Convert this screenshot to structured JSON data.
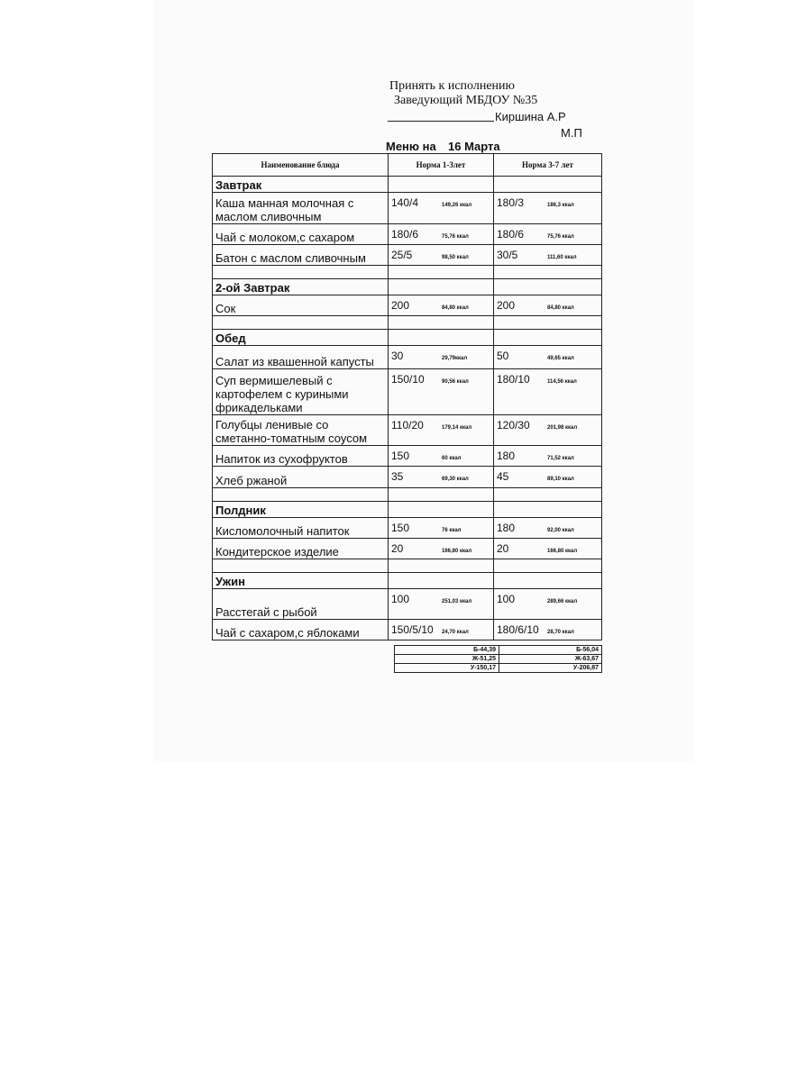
{
  "approval": {
    "line1": "Принять к исполнению",
    "line2": "Заведующий МБДОУ №35",
    "signer": "Киршина А.Р",
    "stamp": "М.П"
  },
  "title": {
    "label": "Меню на",
    "date": "16 Марта"
  },
  "table": {
    "header": [
      "Наименование блюда",
      "Норма 1-3лет",
      "Норма 3-7 лет"
    ],
    "sections": [
      {
        "title": "Завтрак",
        "dishes": [
          {
            "name": "Каша манная молочная с маслом сливочным",
            "norm_1_3": {
              "portion": "140/4",
              "kcal": "149,26 ккал"
            },
            "norm_3_7": {
              "portion": "180/3",
              "kcal": "186,3 ккал"
            }
          },
          {
            "name": "Чай с молоком,с сахаром",
            "norm_1_3": {
              "portion": "180/6",
              "kcal": "75,76 ккал"
            },
            "norm_3_7": {
              "portion": "180/6",
              "kcal": "75,76 ккал"
            }
          },
          {
            "name": "Батон с   маслом сливочным",
            "norm_1_3": {
              "portion": "25/5",
              "kcal": "98,50 ккал"
            },
            "norm_3_7": {
              "portion": "30/5",
              "kcal": "111,60 ккал"
            }
          }
        ]
      },
      {
        "title": "2-ой Завтрак",
        "dishes": [
          {
            "name": "Сок",
            "norm_1_3": {
              "portion": "200",
              "kcal": "84,80 ккал"
            },
            "norm_3_7": {
              "portion": "200",
              "kcal": "84,80 ккал"
            }
          }
        ]
      },
      {
        "title": "Обед",
        "dishes": [
          {
            "name": "Салат из квашенной капусты",
            "norm_1_3": {
              "portion": "30",
              "kcal": "29,79ккал"
            },
            "norm_3_7": {
              "portion": "50",
              "kcal": "49,65 ккал"
            }
          },
          {
            "name": "Суп вермишелевый с картофелем с куриными фрикадельками",
            "norm_1_3": {
              "portion": "150/10",
              "kcal": "90,56 ккал"
            },
            "norm_3_7": {
              "portion": "180/10",
              "kcal": "114,56 ккал"
            }
          },
          {
            "name": "Голубцы ленивые со сметанно-томатным соусом",
            "norm_1_3": {
              "portion": "110/20",
              "kcal": "179,14 ккал"
            },
            "norm_3_7": {
              "portion": "120/30",
              "kcal": "201,98 ккал"
            }
          },
          {
            "name": "Напиток из сухофруктов",
            "norm_1_3": {
              "portion": "150",
              "kcal": "60 ккал"
            },
            "norm_3_7": {
              "portion": "180",
              "kcal": "71,52 ккал"
            }
          },
          {
            "name": "Хлеб ржаной",
            "norm_1_3": {
              "portion": "35",
              "kcal": "69,30 ккал"
            },
            "norm_3_7": {
              "portion": "45",
              "kcal": "89,10 ккал"
            }
          }
        ]
      },
      {
        "title": "Полдник",
        "dishes": [
          {
            "name": "Кисломолочный напиток",
            "norm_1_3": {
              "portion": "150",
              "kcal": "76 ккал"
            },
            "norm_3_7": {
              "portion": "180",
              "kcal": "92,00 ккал"
            }
          },
          {
            "name": "Кондитерское изделие",
            "norm_1_3": {
              "portion": "20",
              "kcal": "166,80 ккал"
            },
            "norm_3_7": {
              "portion": "20",
              "kcal": "166,80 ккал"
            }
          }
        ]
      },
      {
        "title": "Ужин",
        "dishes": [
          {
            "name": "Расстегай с рыбой",
            "norm_1_3": {
              "portion": "100",
              "kcal": "251,03 ккал"
            },
            "norm_3_7": {
              "portion": "100",
              "kcal": "289,66 ккал"
            }
          },
          {
            "name": "Чай с сахаром,с яблоками",
            "norm_1_3": {
              "portion": "150/5/10",
              "kcal": "24,70 ккал"
            },
            "norm_3_7": {
              "portion": "180/6/10",
              "kcal": "28,70 ккал"
            }
          }
        ]
      }
    ],
    "totals": [
      [
        "Б-44,39",
        "Б-56,04"
      ],
      [
        "Ж-51,25",
        "Ж-63,67"
      ],
      [
        "У-150,17",
        "У-206,87"
      ]
    ]
  }
}
